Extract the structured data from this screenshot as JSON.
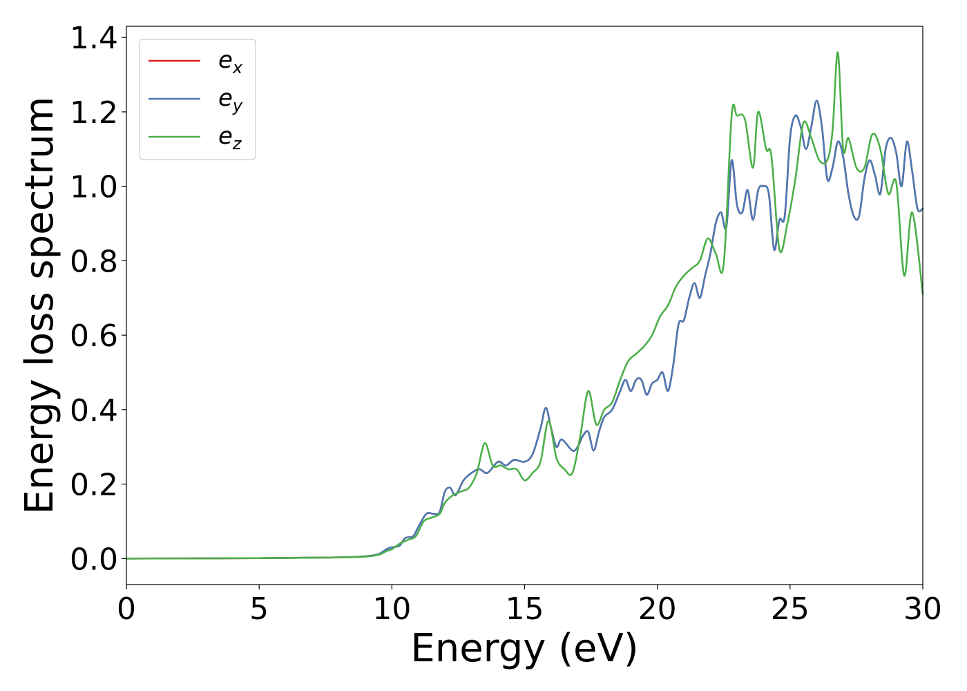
{
  "chart_data": {
    "type": "line",
    "xlabel": "Energy (eV)",
    "ylabel": "Energy loss spectrum",
    "xlim": [
      0,
      30
    ],
    "ylim": [
      -0.07,
      1.43
    ],
    "xticks": [
      0,
      5,
      10,
      15,
      20,
      25,
      30
    ],
    "yticks": [
      0.0,
      0.2,
      0.4,
      0.6,
      0.8,
      1.0,
      1.2,
      1.4
    ],
    "xtick_labels": [
      "0",
      "5",
      "10",
      "15",
      "20",
      "25",
      "30"
    ],
    "ytick_labels": [
      "0.0",
      "0.2",
      "0.4",
      "0.6",
      "0.8",
      "1.0",
      "1.2",
      "1.4"
    ],
    "grid": false,
    "legend": "top-left",
    "series": [
      {
        "name": "e_x",
        "label_base": "e",
        "label_sub": "x",
        "color": "#e41a1c",
        "x": [
          0,
          5,
          8,
          9,
          9.5,
          9.8,
          10,
          10.3,
          10.5,
          10.8,
          11,
          11.3,
          11.6,
          11.8,
          12,
          12.2,
          12.4,
          12.7,
          13,
          13.3,
          13.6,
          14,
          14.3,
          14.6,
          15,
          15.3,
          15.6,
          15.8,
          16,
          16.2,
          16.4,
          16.8,
          17,
          17.2,
          17.4,
          17.6,
          17.8,
          18,
          18.3,
          18.6,
          18.8,
          19,
          19.2,
          19.4,
          19.6,
          19.8,
          20,
          20.2,
          20.4,
          20.6,
          20.8,
          21,
          21.2,
          21.4,
          21.6,
          21.8,
          22,
          22.2,
          22.4,
          22.6,
          22.8,
          23,
          23.2,
          23.4,
          23.6,
          23.8,
          24,
          24.2,
          24.4,
          24.6,
          24.8,
          25,
          25.2,
          25.4,
          25.6,
          25.8,
          26,
          26.2,
          26.4,
          26.6,
          26.8,
          27,
          27.2,
          27.4,
          27.6,
          27.8,
          28,
          28.2,
          28.4,
          28.6,
          28.8,
          29,
          29.2,
          29.4,
          29.6,
          29.8,
          30
        ],
        "y": [
          0.0,
          0.001,
          0.003,
          0.006,
          0.012,
          0.025,
          0.03,
          0.035,
          0.055,
          0.06,
          0.085,
          0.12,
          0.12,
          0.125,
          0.18,
          0.19,
          0.17,
          0.21,
          0.23,
          0.24,
          0.23,
          0.26,
          0.25,
          0.265,
          0.26,
          0.28,
          0.35,
          0.405,
          0.35,
          0.3,
          0.32,
          0.29,
          0.3,
          0.33,
          0.34,
          0.29,
          0.34,
          0.38,
          0.4,
          0.45,
          0.48,
          0.45,
          0.48,
          0.48,
          0.44,
          0.47,
          0.48,
          0.5,
          0.45,
          0.52,
          0.63,
          0.64,
          0.7,
          0.74,
          0.7,
          0.76,
          0.82,
          0.9,
          0.93,
          0.89,
          1.07,
          0.95,
          0.93,
          0.99,
          0.91,
          0.99,
          1.0,
          0.98,
          0.83,
          0.91,
          0.92,
          1.13,
          1.19,
          1.16,
          1.1,
          1.16,
          1.23,
          1.16,
          1.02,
          1.05,
          1.12,
          1.08,
          0.98,
          0.92,
          0.92,
          1.02,
          1.07,
          1.03,
          0.98,
          1.1,
          1.13,
          1.09,
          1.0,
          1.12,
          1.04,
          0.94,
          0.94
        ]
      },
      {
        "name": "e_y",
        "label_base": "e",
        "label_sub": "y",
        "color": "#4a7ab5",
        "x": [
          0,
          5,
          8,
          9,
          9.5,
          9.8,
          10,
          10.3,
          10.5,
          10.8,
          11,
          11.3,
          11.6,
          11.8,
          12,
          12.2,
          12.4,
          12.7,
          13,
          13.3,
          13.6,
          14,
          14.3,
          14.6,
          15,
          15.3,
          15.6,
          15.8,
          16,
          16.2,
          16.4,
          16.8,
          17,
          17.2,
          17.4,
          17.6,
          17.8,
          18,
          18.3,
          18.6,
          18.8,
          19,
          19.2,
          19.4,
          19.6,
          19.8,
          20,
          20.2,
          20.4,
          20.6,
          20.8,
          21,
          21.2,
          21.4,
          21.6,
          21.8,
          22,
          22.2,
          22.4,
          22.6,
          22.8,
          23,
          23.2,
          23.4,
          23.6,
          23.8,
          24,
          24.2,
          24.4,
          24.6,
          24.8,
          25,
          25.2,
          25.4,
          25.6,
          25.8,
          26,
          26.2,
          26.4,
          26.6,
          26.8,
          27,
          27.2,
          27.4,
          27.6,
          27.8,
          28,
          28.2,
          28.4,
          28.6,
          28.8,
          29,
          29.2,
          29.4,
          29.6,
          29.8,
          30
        ],
        "y": [
          0.0,
          0.001,
          0.003,
          0.006,
          0.012,
          0.025,
          0.03,
          0.035,
          0.055,
          0.06,
          0.085,
          0.12,
          0.12,
          0.125,
          0.18,
          0.19,
          0.17,
          0.21,
          0.23,
          0.24,
          0.23,
          0.26,
          0.25,
          0.265,
          0.26,
          0.28,
          0.35,
          0.405,
          0.35,
          0.3,
          0.32,
          0.29,
          0.3,
          0.33,
          0.34,
          0.29,
          0.34,
          0.38,
          0.4,
          0.45,
          0.48,
          0.45,
          0.48,
          0.48,
          0.44,
          0.47,
          0.48,
          0.5,
          0.45,
          0.52,
          0.63,
          0.64,
          0.7,
          0.74,
          0.7,
          0.76,
          0.82,
          0.9,
          0.93,
          0.89,
          1.07,
          0.95,
          0.93,
          0.99,
          0.91,
          0.99,
          1.0,
          0.98,
          0.83,
          0.91,
          0.92,
          1.13,
          1.19,
          1.16,
          1.1,
          1.16,
          1.23,
          1.16,
          1.02,
          1.05,
          1.12,
          1.08,
          0.98,
          0.92,
          0.92,
          1.02,
          1.07,
          1.03,
          0.98,
          1.1,
          1.13,
          1.09,
          1.0,
          1.12,
          1.04,
          0.94,
          0.94
        ]
      },
      {
        "name": "e_z",
        "label_base": "e",
        "label_sub": "z",
        "color": "#4daf4a",
        "x": [
          0,
          5,
          8,
          9,
          9.5,
          9.8,
          10,
          10.3,
          10.6,
          10.9,
          11.2,
          11.5,
          11.8,
          12,
          12.3,
          12.6,
          12.9,
          13.2,
          13.5,
          13.8,
          14.1,
          14.4,
          14.7,
          15,
          15.3,
          15.6,
          15.9,
          16.2,
          16.5,
          16.8,
          17.1,
          17.4,
          17.7,
          18,
          18.3,
          18.6,
          18.9,
          19.2,
          19.5,
          19.8,
          20.1,
          20.4,
          20.7,
          21,
          21.3,
          21.6,
          21.9,
          22.2,
          22.5,
          22.8,
          23.0,
          23.3,
          23.6,
          23.8,
          24.1,
          24.3,
          24.6,
          24.9,
          25.2,
          25.5,
          25.8,
          26.1,
          26.4,
          26.6,
          26.8,
          27.0,
          27.2,
          27.5,
          27.8,
          28.1,
          28.4,
          28.7,
          29,
          29.3,
          29.6,
          30
        ],
        "y": [
          0.0,
          0.001,
          0.003,
          0.005,
          0.01,
          0.02,
          0.025,
          0.04,
          0.05,
          0.06,
          0.1,
          0.11,
          0.12,
          0.15,
          0.17,
          0.18,
          0.19,
          0.23,
          0.31,
          0.25,
          0.25,
          0.24,
          0.24,
          0.21,
          0.23,
          0.26,
          0.37,
          0.27,
          0.24,
          0.23,
          0.33,
          0.45,
          0.36,
          0.4,
          0.42,
          0.48,
          0.53,
          0.55,
          0.57,
          0.6,
          0.65,
          0.68,
          0.73,
          0.76,
          0.78,
          0.8,
          0.86,
          0.82,
          0.79,
          1.19,
          1.19,
          1.18,
          1.05,
          1.2,
          1.1,
          1.08,
          0.83,
          0.9,
          1.02,
          1.17,
          1.13,
          1.07,
          1.07,
          1.15,
          1.36,
          1.1,
          1.13,
          1.05,
          1.05,
          1.14,
          1.1,
          0.98,
          1.01,
          0.76,
          0.93,
          0.71
        ]
      }
    ]
  }
}
